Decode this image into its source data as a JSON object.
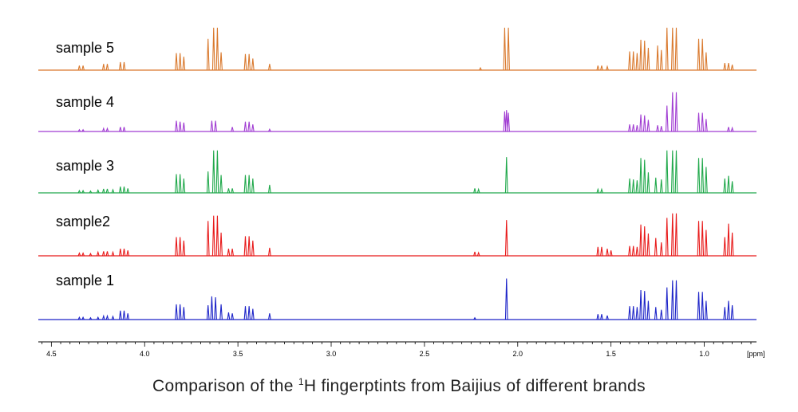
{
  "chart_data": {
    "type": "line",
    "x_unit_label": "[ppm]",
    "xlim": [
      4.57,
      0.72
    ],
    "x_reversed": true,
    "ticks": [
      "4.5",
      "4.0",
      "3.5",
      "3.0",
      "2.5",
      "2.0",
      "1.5",
      "1.0"
    ],
    "tick_values": [
      4.5,
      4.0,
      3.5,
      3.0,
      2.5,
      2.0,
      1.5,
      1.0
    ],
    "grid": false,
    "series": [
      {
        "name": "sample 5",
        "color": "#d9782c",
        "peaks": [
          [
            4.35,
            10
          ],
          [
            4.33,
            10
          ],
          [
            4.22,
            14
          ],
          [
            4.2,
            14
          ],
          [
            4.13,
            18
          ],
          [
            4.11,
            18
          ],
          [
            3.83,
            38
          ],
          [
            3.81,
            38
          ],
          [
            3.79,
            30
          ],
          [
            3.66,
            70
          ],
          [
            3.63,
            95
          ],
          [
            3.61,
            95
          ],
          [
            3.59,
            40
          ],
          [
            3.46,
            36
          ],
          [
            3.44,
            36
          ],
          [
            3.42,
            26
          ],
          [
            3.33,
            14
          ],
          [
            2.07,
            95
          ],
          [
            2.05,
            95
          ],
          [
            2.2,
            5
          ],
          [
            1.57,
            10
          ],
          [
            1.55,
            10
          ],
          [
            1.52,
            8
          ],
          [
            1.4,
            42
          ],
          [
            1.38,
            42
          ],
          [
            1.36,
            38
          ],
          [
            1.34,
            68
          ],
          [
            1.32,
            66
          ],
          [
            1.3,
            50
          ],
          [
            1.25,
            55
          ],
          [
            1.23,
            45
          ],
          [
            1.2,
            95
          ],
          [
            1.17,
            95
          ],
          [
            1.15,
            95
          ],
          [
            1.03,
            70
          ],
          [
            1.01,
            70
          ],
          [
            0.99,
            40
          ],
          [
            0.89,
            16
          ],
          [
            0.87,
            16
          ],
          [
            0.85,
            12
          ]
        ]
      },
      {
        "name": "sample 4",
        "color": "#a03cd2",
        "peaks": [
          [
            4.35,
            4
          ],
          [
            4.33,
            4
          ],
          [
            4.22,
            7
          ],
          [
            4.2,
            7
          ],
          [
            4.13,
            10
          ],
          [
            4.11,
            10
          ],
          [
            3.83,
            24
          ],
          [
            3.81,
            22
          ],
          [
            3.79,
            20
          ],
          [
            3.64,
            24
          ],
          [
            3.62,
            24
          ],
          [
            3.53,
            10
          ],
          [
            3.46,
            22
          ],
          [
            3.44,
            22
          ],
          [
            3.42,
            16
          ],
          [
            3.33,
            5
          ],
          [
            2.07,
            45
          ],
          [
            2.06,
            48
          ],
          [
            2.05,
            42
          ],
          [
            1.4,
            16
          ],
          [
            1.38,
            16
          ],
          [
            1.36,
            14
          ],
          [
            1.34,
            38
          ],
          [
            1.32,
            36
          ],
          [
            1.3,
            26
          ],
          [
            1.25,
            14
          ],
          [
            1.23,
            12
          ],
          [
            1.2,
            58
          ],
          [
            1.17,
            88
          ],
          [
            1.15,
            88
          ],
          [
            1.03,
            42
          ],
          [
            1.01,
            42
          ],
          [
            0.99,
            28
          ],
          [
            0.87,
            10
          ],
          [
            0.85,
            8
          ]
        ]
      },
      {
        "name": "sample 3",
        "color": "#1fa84a",
        "peaks": [
          [
            4.35,
            5
          ],
          [
            4.33,
            5
          ],
          [
            4.29,
            4
          ],
          [
            4.25,
            6
          ],
          [
            4.22,
            9
          ],
          [
            4.2,
            9
          ],
          [
            4.17,
            7
          ],
          [
            4.13,
            14
          ],
          [
            4.11,
            14
          ],
          [
            4.09,
            10
          ],
          [
            3.83,
            42
          ],
          [
            3.81,
            42
          ],
          [
            3.79,
            32
          ],
          [
            3.66,
            48
          ],
          [
            3.63,
            95
          ],
          [
            3.61,
            95
          ],
          [
            3.59,
            40
          ],
          [
            3.55,
            10
          ],
          [
            3.53,
            10
          ],
          [
            3.46,
            40
          ],
          [
            3.44,
            40
          ],
          [
            3.42,
            32
          ],
          [
            3.33,
            18
          ],
          [
            2.23,
            10
          ],
          [
            2.21,
            8
          ],
          [
            2.06,
            80
          ],
          [
            1.57,
            8
          ],
          [
            1.55,
            8
          ],
          [
            1.4,
            32
          ],
          [
            1.38,
            30
          ],
          [
            1.36,
            28
          ],
          [
            1.34,
            78
          ],
          [
            1.32,
            74
          ],
          [
            1.3,
            46
          ],
          [
            1.26,
            34
          ],
          [
            1.23,
            30
          ],
          [
            1.2,
            95
          ],
          [
            1.17,
            95
          ],
          [
            1.15,
            95
          ],
          [
            1.03,
            78
          ],
          [
            1.01,
            78
          ],
          [
            0.99,
            58
          ],
          [
            0.89,
            32
          ],
          [
            0.87,
            38
          ],
          [
            0.85,
            26
          ]
        ]
      },
      {
        "name": "sample2",
        "color": "#e81919",
        "peaks": [
          [
            4.35,
            6
          ],
          [
            4.33,
            6
          ],
          [
            4.29,
            5
          ],
          [
            4.25,
            8
          ],
          [
            4.22,
            10
          ],
          [
            4.2,
            10
          ],
          [
            4.17,
            8
          ],
          [
            4.13,
            16
          ],
          [
            4.11,
            16
          ],
          [
            4.09,
            12
          ],
          [
            3.83,
            42
          ],
          [
            3.81,
            42
          ],
          [
            3.79,
            34
          ],
          [
            3.66,
            78
          ],
          [
            3.63,
            90
          ],
          [
            3.61,
            90
          ],
          [
            3.59,
            52
          ],
          [
            3.55,
            16
          ],
          [
            3.53,
            16
          ],
          [
            3.46,
            44
          ],
          [
            3.44,
            44
          ],
          [
            3.42,
            34
          ],
          [
            3.33,
            18
          ],
          [
            2.23,
            9
          ],
          [
            2.21,
            7
          ],
          [
            2.06,
            80
          ],
          [
            1.57,
            20
          ],
          [
            1.55,
            20
          ],
          [
            1.52,
            16
          ],
          [
            1.5,
            12
          ],
          [
            1.4,
            22
          ],
          [
            1.38,
            22
          ],
          [
            1.36,
            20
          ],
          [
            1.34,
            70
          ],
          [
            1.32,
            66
          ],
          [
            1.3,
            50
          ],
          [
            1.26,
            40
          ],
          [
            1.23,
            30
          ],
          [
            1.2,
            85
          ],
          [
            1.17,
            95
          ],
          [
            1.15,
            95
          ],
          [
            1.03,
            78
          ],
          [
            1.01,
            78
          ],
          [
            0.99,
            58
          ],
          [
            0.89,
            42
          ],
          [
            0.87,
            72
          ],
          [
            0.85,
            52
          ]
        ]
      },
      {
        "name": "sample 1",
        "color": "#1c23c8",
        "peaks": [
          [
            4.35,
            5
          ],
          [
            4.33,
            5
          ],
          [
            4.29,
            4
          ],
          [
            4.25,
            5
          ],
          [
            4.22,
            8
          ],
          [
            4.2,
            8
          ],
          [
            4.17,
            7
          ],
          [
            4.13,
            20
          ],
          [
            4.11,
            20
          ],
          [
            4.09,
            14
          ],
          [
            3.83,
            34
          ],
          [
            3.81,
            34
          ],
          [
            3.79,
            28
          ],
          [
            3.66,
            32
          ],
          [
            3.64,
            52
          ],
          [
            3.62,
            50
          ],
          [
            3.59,
            34
          ],
          [
            3.55,
            16
          ],
          [
            3.53,
            14
          ],
          [
            3.46,
            30
          ],
          [
            3.44,
            30
          ],
          [
            3.42,
            24
          ],
          [
            3.33,
            14
          ],
          [
            2.23,
            4
          ],
          [
            2.06,
            92
          ],
          [
            1.57,
            12
          ],
          [
            1.55,
            12
          ],
          [
            1.52,
            9
          ],
          [
            1.4,
            30
          ],
          [
            1.38,
            30
          ],
          [
            1.36,
            28
          ],
          [
            1.34,
            66
          ],
          [
            1.32,
            64
          ],
          [
            1.3,
            42
          ],
          [
            1.26,
            28
          ],
          [
            1.23,
            22
          ],
          [
            1.2,
            72
          ],
          [
            1.17,
            88
          ],
          [
            1.15,
            88
          ],
          [
            1.03,
            62
          ],
          [
            1.01,
            62
          ],
          [
            0.99,
            42
          ],
          [
            0.89,
            28
          ],
          [
            0.87,
            42
          ],
          [
            0.85,
            32
          ]
        ]
      }
    ]
  },
  "caption": {
    "prefix": "Comparison of the ",
    "superscript": "1",
    "suffix": "H fingerptints from Baijius of different brands"
  }
}
